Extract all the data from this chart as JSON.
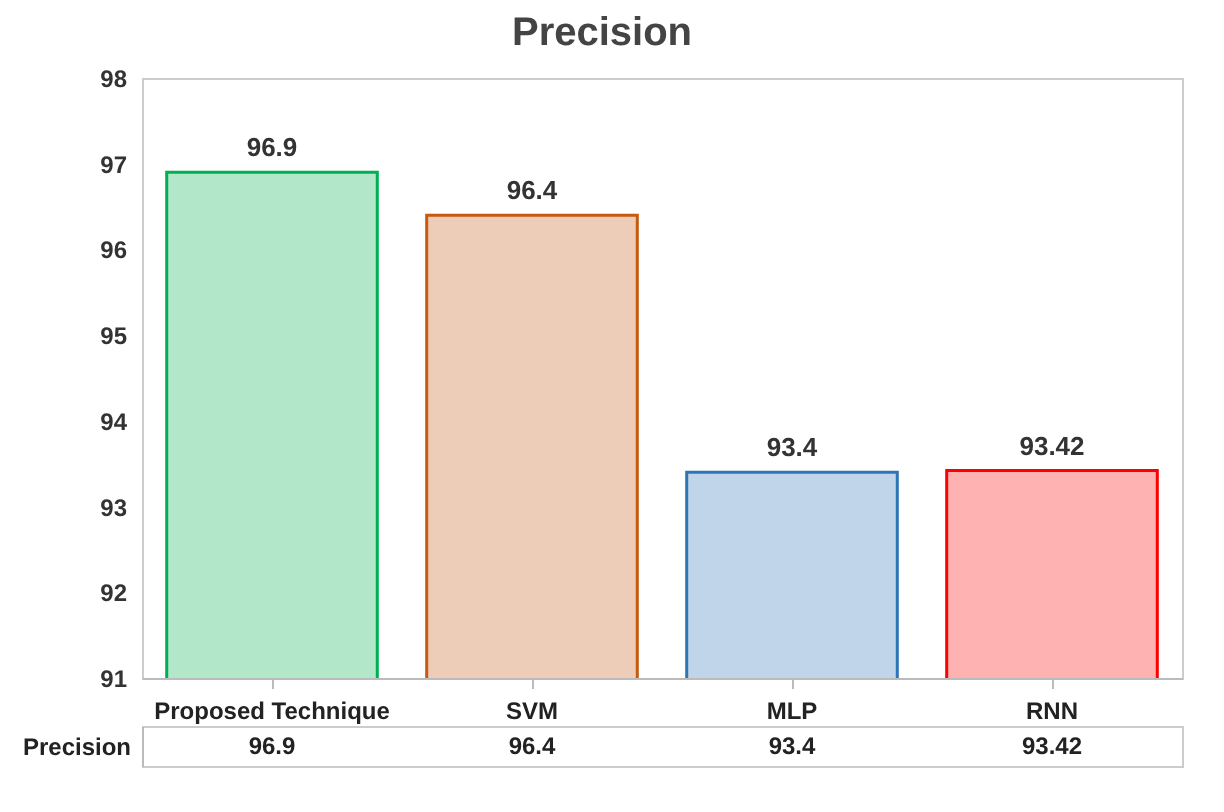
{
  "chart_data": {
    "type": "bar",
    "title": "Precision",
    "categories": [
      "Proposed Technique",
      "SVM",
      "MLP",
      "RNN"
    ],
    "series": [
      {
        "name": "Precision",
        "values": [
          96.9,
          96.4,
          93.4,
          93.42
        ],
        "colors": [
          "#00b050",
          "#c55a11",
          "#2e75b6",
          "#ff0000"
        ]
      }
    ],
    "ylim": [
      91,
      98
    ],
    "yticks": [
      91,
      92,
      93,
      94,
      95,
      96,
      97,
      98
    ],
    "grid": false,
    "data_labels": true,
    "annotations": [
      "96.9",
      "96.4",
      "93.4",
      "93.42"
    ]
  }
}
